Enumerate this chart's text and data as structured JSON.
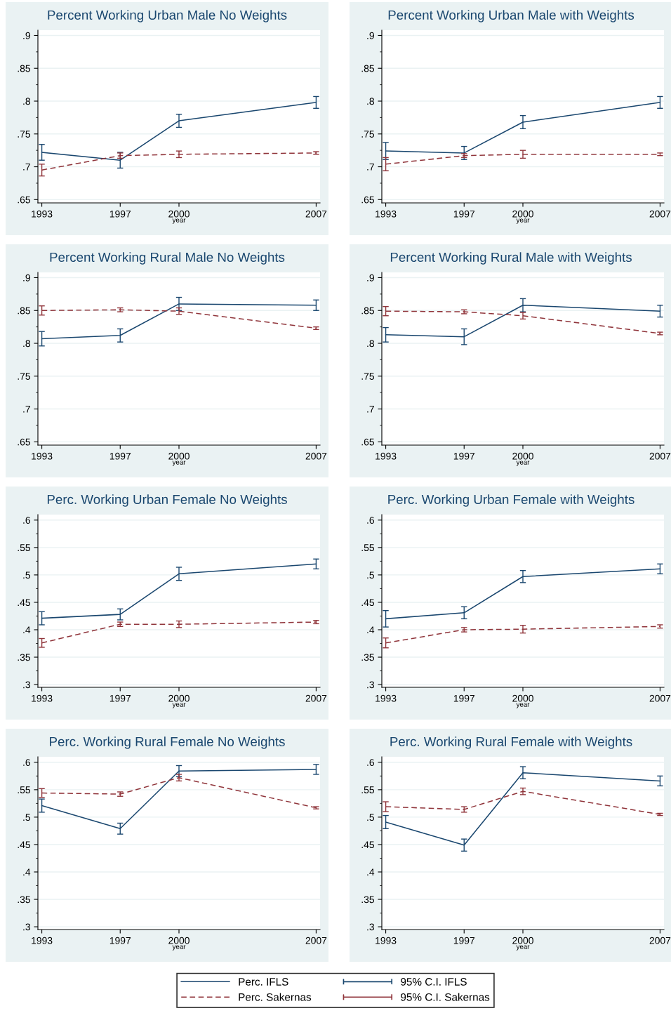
{
  "chart_data": [
    {
      "type": "line",
      "title": "Percent Working Urban Male No Weights",
      "xlabel": "year",
      "x": [
        1993,
        1997,
        2000,
        2007
      ],
      "xlim": [
        1992.8,
        2007.2
      ],
      "xticks": [
        1993,
        1997,
        2000,
        2007
      ],
      "ylim": [
        0.645,
        0.908
      ],
      "yticks": [
        {
          "value": 0.65,
          "label": ".65"
        },
        {
          "value": 0.7,
          "label": ".7"
        },
        {
          "value": 0.75,
          "label": ".75"
        },
        {
          "value": 0.8,
          "label": ".8"
        },
        {
          "value": 0.85,
          "label": ".85"
        },
        {
          "value": 0.9,
          "label": ".9"
        }
      ],
      "grid": "y",
      "legend": "bottom",
      "annotations": [
        "95% C.I. IFLS",
        "95% C.I. Sakernas"
      ],
      "series": [
        {
          "name": "Perc. IFLS",
          "color": "#1a476f",
          "line_style": "solid",
          "values": [
            0.722,
            0.71,
            0.77,
            0.798
          ],
          "errors": [
            0.012,
            0.012,
            0.01,
            0.009
          ]
        },
        {
          "name": "Perc. Sakernas",
          "color": "#90353b",
          "line_style": "dashed",
          "values": [
            0.695,
            0.717,
            0.719,
            0.721
          ],
          "errors": [
            0.009,
            0.004,
            0.005,
            0.002
          ]
        }
      ]
    },
    {
      "type": "line",
      "title": "Percent Working Urban Male with Weights",
      "xlabel": "year",
      "x": [
        1993,
        1997,
        2000,
        2007
      ],
      "xlim": [
        1992.8,
        2007.2
      ],
      "xticks": [
        1993,
        1997,
        2000,
        2007
      ],
      "ylim": [
        0.645,
        0.908
      ],
      "yticks": [
        {
          "value": 0.65,
          "label": ".65"
        },
        {
          "value": 0.7,
          "label": ".7"
        },
        {
          "value": 0.75,
          "label": ".75"
        },
        {
          "value": 0.8,
          "label": ".8"
        },
        {
          "value": 0.85,
          "label": ".85"
        },
        {
          "value": 0.9,
          "label": ".9"
        }
      ],
      "grid": "y",
      "series": [
        {
          "color": "#1a476f",
          "line_style": "solid",
          "values": [
            0.724,
            0.721,
            0.768,
            0.798
          ],
          "errors": [
            0.013,
            0.01,
            0.01,
            0.009
          ]
        },
        {
          "color": "#90353b",
          "line_style": "dashed",
          "values": [
            0.704,
            0.717,
            0.719,
            0.719
          ],
          "errors": [
            0.01,
            0.003,
            0.006,
            0.002
          ]
        }
      ]
    },
    {
      "type": "line",
      "title": "Percent Working Rural Male No Weights",
      "xlabel": "year",
      "x": [
        1993,
        1997,
        2000,
        2007
      ],
      "xlim": [
        1992.8,
        2007.2
      ],
      "xticks": [
        1993,
        1997,
        2000,
        2007
      ],
      "ylim": [
        0.645,
        0.908
      ],
      "yticks": [
        {
          "value": 0.65,
          "label": ".65"
        },
        {
          "value": 0.7,
          "label": ".7"
        },
        {
          "value": 0.75,
          "label": ".75"
        },
        {
          "value": 0.8,
          "label": ".8"
        },
        {
          "value": 0.85,
          "label": ".85"
        },
        {
          "value": 0.9,
          "label": ".9"
        }
      ],
      "grid": "y",
      "series": [
        {
          "color": "#1a476f",
          "line_style": "solid",
          "values": [
            0.807,
            0.812,
            0.86,
            0.858
          ],
          "errors": [
            0.011,
            0.01,
            0.01,
            0.008
          ]
        },
        {
          "color": "#90353b",
          "line_style": "dashed",
          "values": [
            0.85,
            0.851,
            0.849,
            0.823
          ],
          "errors": [
            0.007,
            0.003,
            0.005,
            0.002
          ]
        }
      ]
    },
    {
      "type": "line",
      "title": "Percent Working Rural Male with Weights",
      "xlabel": "year",
      "x": [
        1993,
        1997,
        2000,
        2007
      ],
      "xlim": [
        1992.8,
        2007.2
      ],
      "xticks": [
        1993,
        1997,
        2000,
        2007
      ],
      "ylim": [
        0.645,
        0.908
      ],
      "yticks": [
        {
          "value": 0.65,
          "label": ".65"
        },
        {
          "value": 0.7,
          "label": ".7"
        },
        {
          "value": 0.75,
          "label": ".75"
        },
        {
          "value": 0.8,
          "label": ".8"
        },
        {
          "value": 0.85,
          "label": ".85"
        },
        {
          "value": 0.9,
          "label": ".9"
        }
      ],
      "grid": "y",
      "series": [
        {
          "color": "#1a476f",
          "line_style": "solid",
          "values": [
            0.813,
            0.81,
            0.858,
            0.849
          ],
          "errors": [
            0.011,
            0.012,
            0.01,
            0.009
          ]
        },
        {
          "color": "#90353b",
          "line_style": "dashed",
          "values": [
            0.849,
            0.848,
            0.842,
            0.815
          ],
          "errors": [
            0.007,
            0.003,
            0.005,
            0.002
          ]
        }
      ]
    },
    {
      "type": "line",
      "title": "Perc. Working Urban Female No Weights",
      "xlabel": "year",
      "x": [
        1993,
        1997,
        2000,
        2007
      ],
      "xlim": [
        1992.8,
        2007.2
      ],
      "xticks": [
        1993,
        1997,
        2000,
        2007
      ],
      "ylim": [
        0.295,
        0.61
      ],
      "yticks": [
        {
          "value": 0.3,
          "label": ".3"
        },
        {
          "value": 0.35,
          "label": ".35"
        },
        {
          "value": 0.4,
          "label": ".4"
        },
        {
          "value": 0.45,
          "label": ".45"
        },
        {
          "value": 0.5,
          "label": ".5"
        },
        {
          "value": 0.55,
          "label": ".55"
        },
        {
          "value": 0.6,
          "label": ".6"
        }
      ],
      "grid": "y",
      "series": [
        {
          "color": "#1a476f",
          "line_style": "solid",
          "values": [
            0.421,
            0.428,
            0.502,
            0.52
          ],
          "errors": [
            0.012,
            0.01,
            0.012,
            0.009
          ]
        },
        {
          "color": "#90353b",
          "line_style": "dashed",
          "values": [
            0.376,
            0.41,
            0.41,
            0.414
          ],
          "errors": [
            0.008,
            0.004,
            0.006,
            0.003
          ]
        }
      ]
    },
    {
      "type": "line",
      "title": "Perc. Working Urban Female with Weights",
      "xlabel": "year",
      "x": [
        1993,
        1997,
        2000,
        2007
      ],
      "xlim": [
        1992.8,
        2007.2
      ],
      "xticks": [
        1993,
        1997,
        2000,
        2007
      ],
      "ylim": [
        0.295,
        0.61
      ],
      "yticks": [
        {
          "value": 0.3,
          "label": ".3"
        },
        {
          "value": 0.35,
          "label": ".35"
        },
        {
          "value": 0.4,
          "label": ".4"
        },
        {
          "value": 0.45,
          "label": ".45"
        },
        {
          "value": 0.5,
          "label": ".5"
        },
        {
          "value": 0.55,
          "label": ".55"
        },
        {
          "value": 0.6,
          "label": ".6"
        }
      ],
      "grid": "y",
      "series": [
        {
          "color": "#1a476f",
          "line_style": "solid",
          "values": [
            0.42,
            0.431,
            0.497,
            0.511
          ],
          "errors": [
            0.015,
            0.011,
            0.011,
            0.009
          ]
        },
        {
          "color": "#90353b",
          "line_style": "dashed",
          "values": [
            0.376,
            0.4,
            0.401,
            0.406
          ],
          "errors": [
            0.009,
            0.004,
            0.007,
            0.003
          ]
        }
      ]
    },
    {
      "type": "line",
      "title": "Perc. Working Rural Female No Weights",
      "xlabel": "year",
      "x": [
        1993,
        1997,
        2000,
        2007
      ],
      "xlim": [
        1992.8,
        2007.2
      ],
      "xticks": [
        1993,
        1997,
        2000,
        2007
      ],
      "ylim": [
        0.295,
        0.61
      ],
      "yticks": [
        {
          "value": 0.3,
          "label": ".3"
        },
        {
          "value": 0.35,
          "label": ".35"
        },
        {
          "value": 0.4,
          "label": ".4"
        },
        {
          "value": 0.45,
          "label": ".45"
        },
        {
          "value": 0.5,
          "label": ".5"
        },
        {
          "value": 0.55,
          "label": ".55"
        },
        {
          "value": 0.6,
          "label": ".6"
        }
      ],
      "grid": "y",
      "series": [
        {
          "color": "#1a476f",
          "line_style": "solid",
          "values": [
            0.521,
            0.479,
            0.584,
            0.587
          ],
          "errors": [
            0.012,
            0.01,
            0.01,
            0.009
          ]
        },
        {
          "color": "#90353b",
          "line_style": "dashed",
          "values": [
            0.544,
            0.542,
            0.572,
            0.517
          ],
          "errors": [
            0.008,
            0.004,
            0.006,
            0.002
          ]
        }
      ]
    },
    {
      "type": "line",
      "title": "Perc. Working Rural Female with Weights",
      "xlabel": "year",
      "x": [
        1993,
        1997,
        2000,
        2007
      ],
      "xlim": [
        1992.8,
        2007.2
      ],
      "xticks": [
        1993,
        1997,
        2000,
        2007
      ],
      "ylim": [
        0.295,
        0.61
      ],
      "yticks": [
        {
          "value": 0.3,
          "label": ".3"
        },
        {
          "value": 0.35,
          "label": ".35"
        },
        {
          "value": 0.4,
          "label": ".4"
        },
        {
          "value": 0.45,
          "label": ".45"
        },
        {
          "value": 0.5,
          "label": ".5"
        },
        {
          "value": 0.55,
          "label": ".55"
        },
        {
          "value": 0.6,
          "label": ".6"
        }
      ],
      "grid": "y",
      "series": [
        {
          "color": "#1a476f",
          "line_style": "solid",
          "values": [
            0.491,
            0.449,
            0.581,
            0.566
          ],
          "errors": [
            0.012,
            0.011,
            0.011,
            0.009
          ]
        },
        {
          "color": "#90353b",
          "line_style": "dashed",
          "values": [
            0.519,
            0.514,
            0.547,
            0.505
          ],
          "errors": [
            0.009,
            0.005,
            0.006,
            0.002
          ]
        }
      ]
    }
  ]
}
